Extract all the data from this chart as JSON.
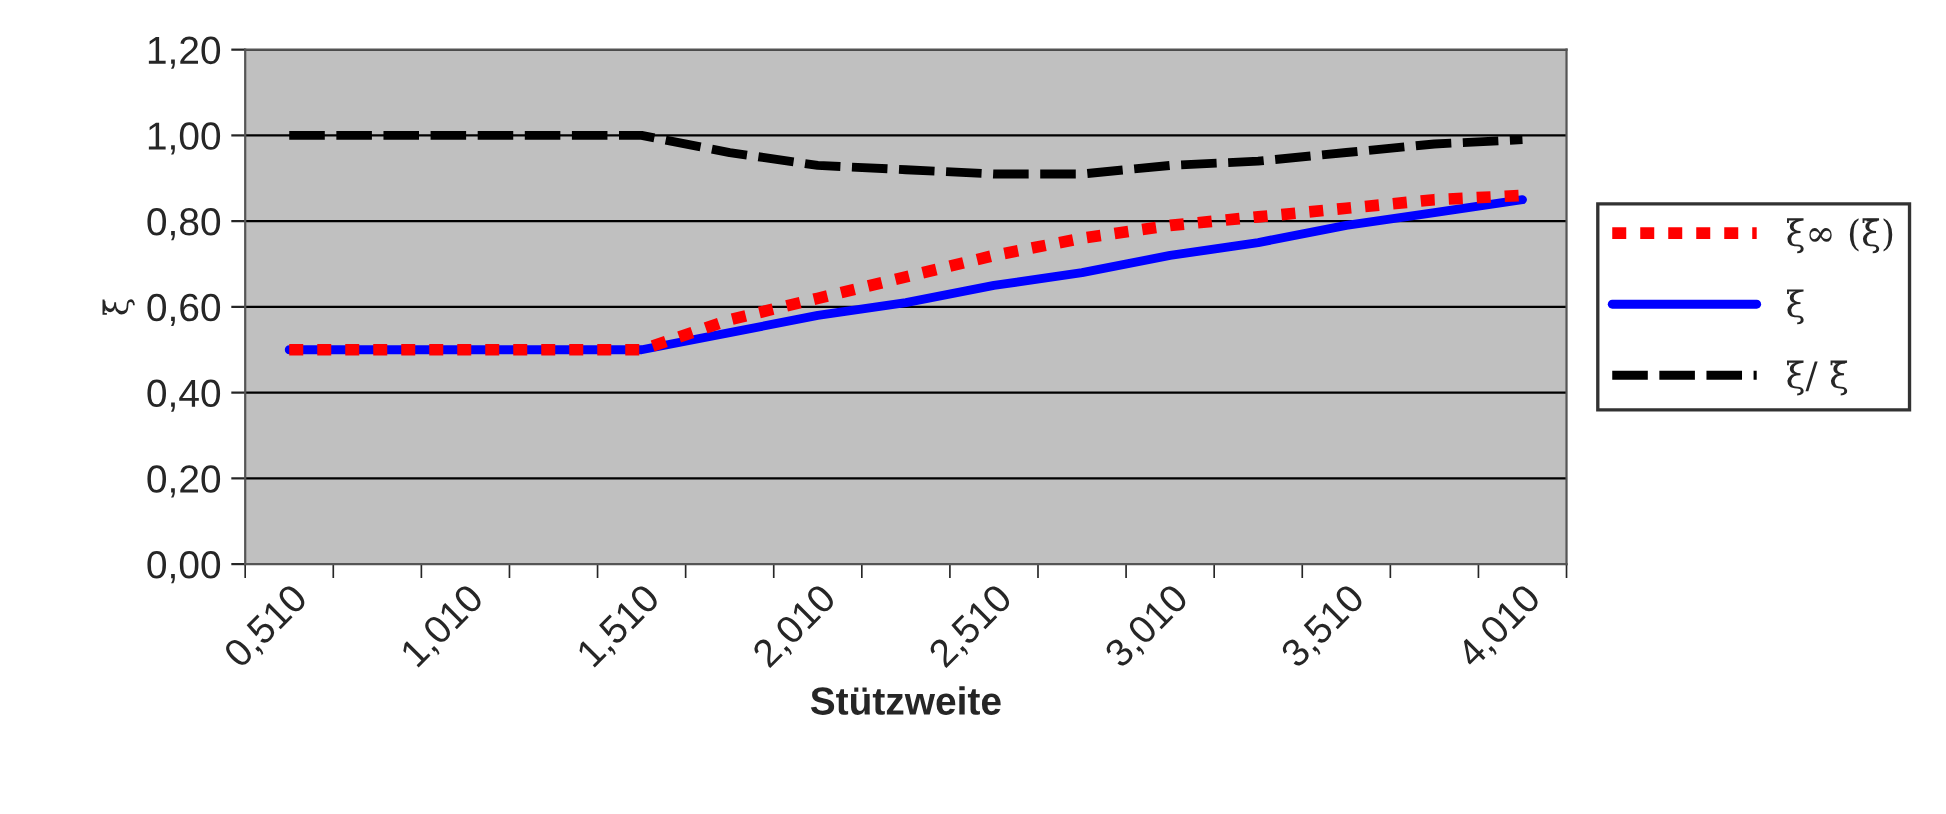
{
  "chart_data": {
    "type": "line",
    "xlabel": "Stützweite",
    "ylabel": "ξ̄",
    "categories": [
      "0,510",
      null,
      "1,010",
      null,
      "1,510",
      null,
      "2,010",
      null,
      "2,510",
      null,
      "3,010",
      null,
      "3,510",
      null,
      "4,010"
    ],
    "series": [
      {
        "name": "ξ∞ (ξ̄)",
        "color": "#ff0000",
        "line_style": "dotted",
        "values": [
          0.5,
          0.5,
          0.5,
          0.5,
          0.5,
          0.57,
          0.62,
          0.67,
          0.72,
          0.76,
          0.79,
          0.81,
          0.83,
          0.85,
          0.86
        ]
      },
      {
        "name": "ξ",
        "color": "#0000ff",
        "line_style": "solid",
        "values": [
          0.5,
          0.5,
          0.5,
          0.5,
          0.5,
          0.54,
          0.58,
          0.61,
          0.65,
          0.68,
          0.72,
          0.75,
          0.79,
          0.82,
          0.85
        ]
      },
      {
        "name": "ξ/ ξ̄",
        "color": "#000000",
        "line_style": "dashed",
        "values": [
          1.0,
          1.0,
          1.0,
          1.0,
          1.0,
          0.96,
          0.93,
          0.92,
          0.91,
          0.91,
          0.93,
          0.94,
          0.96,
          0.98,
          0.99
        ]
      }
    ],
    "ylim": [
      0,
      1.2
    ],
    "yticks": [
      {
        "value": 0,
        "label": "0,00"
      },
      {
        "value": 0.2,
        "label": "0,20"
      },
      {
        "value": 0.4,
        "label": "0,40"
      },
      {
        "value": 0.6,
        "label": "0,60"
      },
      {
        "value": 0.8,
        "label": "0,80"
      },
      {
        "value": 1.0,
        "label": "1,00"
      },
      {
        "value": 1.2,
        "label": "1,20"
      }
    ],
    "grid": "y",
    "legend": "right",
    "marker": "none"
  }
}
